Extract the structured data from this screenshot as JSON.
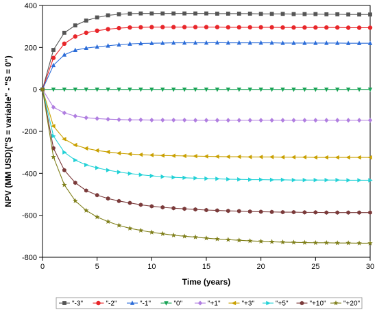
{
  "chart_data": {
    "type": "line",
    "title": "",
    "xlabel": "Time (years)",
    "ylabel": "NPV (MM USD)(\"S = variable\" - \"S = 0\")",
    "xlim": [
      0,
      30
    ],
    "ylim": [
      -800,
      400
    ],
    "xticks": [
      0,
      5,
      10,
      15,
      20,
      25,
      30
    ],
    "yticks": [
      -800,
      -600,
      -400,
      -200,
      0,
      200,
      400
    ],
    "grid": false,
    "legend_position": "bottom",
    "x": [
      0,
      1,
      2,
      3,
      4,
      5,
      6,
      7,
      8,
      9,
      10,
      11,
      12,
      13,
      14,
      15,
      16,
      17,
      18,
      19,
      20,
      21,
      22,
      23,
      24,
      25,
      26,
      27,
      28,
      29,
      30
    ],
    "series": [
      {
        "name": "\"-3\"",
        "color": "#555555",
        "marker": "square",
        "values": [
          0,
          188,
          270,
          305,
          328,
          343,
          353,
          358,
          361,
          362,
          362,
          362,
          362,
          362,
          362,
          362,
          361,
          361,
          361,
          361,
          360,
          360,
          360,
          359,
          359,
          359,
          358,
          358,
          357,
          357,
          357
        ]
      },
      {
        "name": "\"-2\"",
        "color": "#e8262a",
        "marker": "circle",
        "values": [
          0,
          150,
          218,
          252,
          270,
          280,
          287,
          292,
          295,
          296,
          297,
          297,
          297,
          297,
          297,
          297,
          297,
          296,
          296,
          296,
          296,
          296,
          295,
          295,
          295,
          295,
          295,
          295,
          294,
          294,
          294
        ]
      },
      {
        "name": "\"-1\"",
        "color": "#2b6cd8",
        "marker": "triangle-up",
        "values": [
          0,
          115,
          165,
          187,
          197,
          203,
          208,
          213,
          217,
          219,
          220,
          221,
          222,
          222,
          222,
          222,
          223,
          222,
          222,
          222,
          222,
          222,
          221,
          221,
          221,
          221,
          221,
          221,
          220,
          220,
          220
        ]
      },
      {
        "name": "\"0\"",
        "color": "#19a356",
        "marker": "triangle-down",
        "values": [
          0,
          0,
          0,
          0,
          0,
          0,
          0,
          0,
          0,
          0,
          0,
          0,
          0,
          0,
          0,
          0,
          0,
          0,
          0,
          0,
          0,
          0,
          0,
          0,
          0,
          0,
          0,
          0,
          0,
          0,
          0
        ]
      },
      {
        "name": "\"+1\"",
        "color": "#b07ee0",
        "marker": "diamond",
        "values": [
          0,
          -85,
          -112,
          -127,
          -135,
          -139,
          -142,
          -144,
          -145,
          -145,
          -146,
          -146,
          -146,
          -146,
          -147,
          -147,
          -147,
          -147,
          -147,
          -147,
          -147,
          -147,
          -147,
          -147,
          -147,
          -147,
          -147,
          -147,
          -147,
          -147,
          -147
        ]
      },
      {
        "name": "\"+3\"",
        "color": "#c9a000",
        "marker": "triangle-left",
        "values": [
          0,
          -175,
          -237,
          -265,
          -281,
          -291,
          -298,
          -304,
          -308,
          -311,
          -313,
          -315,
          -316,
          -317,
          -318,
          -319,
          -320,
          -321,
          -321,
          -322,
          -322,
          -322,
          -323,
          -323,
          -323,
          -324,
          -324,
          -324,
          -324,
          -324,
          -324
        ]
      },
      {
        "name": "\"+5\"",
        "color": "#22d1d6",
        "marker": "triangle-right",
        "values": [
          0,
          -222,
          -300,
          -337,
          -360,
          -374,
          -385,
          -394,
          -401,
          -407,
          -412,
          -416,
          -419,
          -421,
          -423,
          -425,
          -426,
          -428,
          -429,
          -430,
          -430,
          -431,
          -431,
          -432,
          -432,
          -432,
          -432,
          -432,
          -433,
          -433,
          -433
        ]
      },
      {
        "name": "\"+10\"",
        "color": "#7a3a3a",
        "marker": "hexagon",
        "values": [
          0,
          -280,
          -385,
          -445,
          -482,
          -504,
          -520,
          -532,
          -541,
          -550,
          -557,
          -562,
          -566,
          -569,
          -572,
          -575,
          -577,
          -579,
          -580,
          -582,
          -583,
          -584,
          -585,
          -585,
          -586,
          -586,
          -587,
          -587,
          -587,
          -587,
          -587
        ]
      },
      {
        "name": "\"+20\"",
        "color": "#7f7f1a",
        "marker": "star",
        "values": [
          0,
          -322,
          -455,
          -531,
          -577,
          -608,
          -630,
          -648,
          -662,
          -672,
          -681,
          -688,
          -695,
          -700,
          -704,
          -709,
          -713,
          -716,
          -719,
          -722,
          -724,
          -726,
          -728,
          -729,
          -730,
          -731,
          -731,
          -732,
          -732,
          -733,
          -733
        ]
      }
    ]
  }
}
